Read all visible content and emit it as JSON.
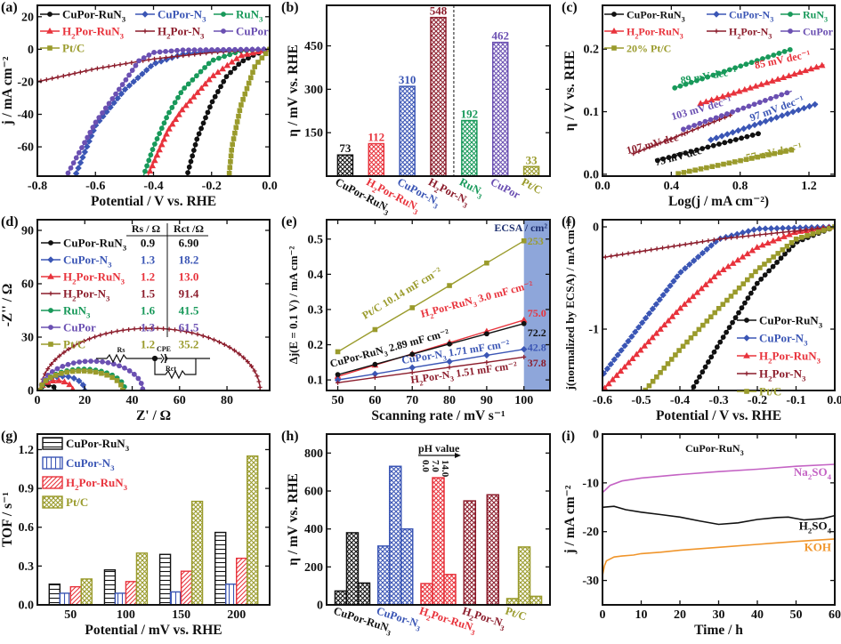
{
  "colors": {
    "black": "#111111",
    "blue": "#3b56b5",
    "green": "#18995a",
    "red": "#e8333c",
    "darkred": "#8c1d2c",
    "purple": "#6b50b2",
    "olive": "#9a9b2c",
    "pink": "#c463c4",
    "orange": "#f0952b",
    "ecsa_band": "#8ea6da"
  },
  "chart_data": [
    {
      "panel": "(a)",
      "type": "line",
      "xlabel": "Potential / V vs. RHE",
      "ylabel": "j / mA cm⁻²",
      "xlim": [
        -0.8,
        0.0
      ],
      "ylim": [
        -78,
        27
      ],
      "xticks": [
        -0.8,
        -0.6,
        -0.4,
        -0.2,
        0.0
      ],
      "xticklabels": [
        "-0.8",
        "-0.6",
        "-0.4",
        "-0.2",
        "0.0"
      ],
      "yticks": [
        20,
        0,
        -20,
        -40,
        -60
      ],
      "yticklabels": [
        "20",
        "0",
        "-20",
        "-40",
        "-60"
      ],
      "legend": "top",
      "series": [
        {
          "name": "CuPor-RuN3",
          "color": "black",
          "marker": "circle",
          "x": [
            0,
            -0.05,
            -0.1,
            -0.15,
            -0.2,
            -0.25,
            -0.285
          ],
          "y": [
            0,
            -3,
            -8,
            -17,
            -33,
            -55,
            -78
          ]
        },
        {
          "name": "CuPor-N3",
          "color": "blue",
          "marker": "diamond",
          "x": [
            0,
            -0.2,
            -0.3,
            -0.4,
            -0.5,
            -0.6,
            -0.67
          ],
          "y": [
            0,
            -1,
            -3,
            -9,
            -25,
            -47,
            -78
          ]
        },
        {
          "name": "RuN3",
          "color": "green",
          "marker": "circle",
          "x": [
            0,
            -0.1,
            -0.2,
            -0.3,
            -0.35,
            -0.4,
            -0.435
          ],
          "y": [
            0,
            -1,
            -7,
            -25,
            -40,
            -60,
            -78
          ]
        },
        {
          "name": "H2Por-RuN3",
          "color": "red",
          "marker": "triangle",
          "x": [
            0,
            -0.1,
            -0.2,
            -0.3,
            -0.35,
            -0.42
          ],
          "y": [
            0,
            -4,
            -17,
            -37,
            -50,
            -78
          ]
        },
        {
          "name": "H2Por-N3",
          "color": "darkred",
          "marker": "star",
          "x": [
            0,
            -0.2,
            -0.4,
            -0.6,
            -0.8
          ],
          "y": [
            0,
            -2,
            -6,
            -12,
            -20
          ]
        },
        {
          "name": "CuPor",
          "color": "purple",
          "marker": "circle",
          "x": [
            0,
            -0.3,
            -0.4,
            -0.45,
            -0.5,
            -0.6,
            -0.7
          ],
          "y": [
            0,
            -0.5,
            -2,
            -7,
            -20,
            -45,
            -78
          ]
        },
        {
          "name": "Pt/C",
          "color": "olive",
          "marker": "square",
          "x": [
            0,
            -0.05,
            -0.1,
            -0.13,
            -0.14
          ],
          "y": [
            0,
            -10,
            -35,
            -60,
            -78
          ]
        }
      ]
    },
    {
      "panel": "(b)",
      "type": "bar",
      "ylabel": "η / mV vs. RHE",
      "ylim": [
        0,
        590
      ],
      "yticks": [
        150,
        300,
        450
      ],
      "yticklabels": [
        "150",
        "300",
        "450"
      ],
      "categories": [
        "CuPor-RuN3",
        "H2Por-RuN3",
        "CuPor-N3",
        "H2Por-N3",
        "RuN3",
        "CuPor",
        "Pt/C"
      ],
      "values": [
        73,
        112,
        310,
        548,
        192,
        462,
        33
      ],
      "data_labels": [
        "73",
        "112",
        "310",
        "548",
        "192",
        "462",
        "33"
      ],
      "bar_colors": [
        "black",
        "red",
        "blue",
        "darkred",
        "green",
        "purple",
        "olive"
      ],
      "fill": "crosshatch",
      "divider": "dashed line between H2Por-N3 and RuN3"
    },
    {
      "panel": "(c)",
      "type": "line",
      "xlabel": "Log(j / mA cm⁻²)",
      "ylabel": "η / V vs. RHE",
      "xlim": [
        0.0,
        1.35
      ],
      "ylim": [
        -0.003,
        0.27
      ],
      "xticks": [
        0.0,
        0.4,
        0.8,
        1.2
      ],
      "xticklabels": [
        "0.0",
        "0.4",
        "0.8",
        "1.2"
      ],
      "yticks": [
        0.0,
        0.1,
        0.2
      ],
      "yticklabels": [
        "0.0",
        "0.1",
        "0.2"
      ],
      "legend": "top",
      "series": [
        {
          "name": "CuPor-RuN3",
          "color": "black",
          "marker": "circle",
          "x": [
            0.32,
            0.92
          ],
          "y": [
            0.022,
            0.066
          ],
          "slope_label": "73 mV dec⁻¹"
        },
        {
          "name": "CuPor-N3",
          "color": "blue",
          "marker": "diamond",
          "x": [
            0.63,
            1.25
          ],
          "y": [
            0.055,
            0.113
          ],
          "slope_label": "97 mV dec⁻¹"
        },
        {
          "name": "RuN3",
          "color": "green",
          "marker": "circle",
          "x": [
            0.42,
            1.1
          ],
          "y": [
            0.138,
            0.2
          ],
          "slope_label": "89 mV dec⁻¹"
        },
        {
          "name": "H2Por-RuN3",
          "color": "red",
          "marker": "triangle",
          "x": [
            0.57,
            1.29
          ],
          "y": [
            0.113,
            0.175
          ],
          "slope_label": "85 mV dec⁻¹"
        },
        {
          "name": "H2Por-N3",
          "color": "darkred",
          "marker": "star",
          "x": [
            0.18,
            0.75
          ],
          "y": [
            0.033,
            0.095
          ],
          "slope_label": "107 mV dec⁻¹"
        },
        {
          "name": "CuPor",
          "color": "purple",
          "marker": "circle",
          "x": [
            0.47,
            1.1
          ],
          "y": [
            0.072,
            0.133
          ],
          "slope_label": "103 mV dec⁻¹"
        },
        {
          "name": "20% Pt/C",
          "color": "olive",
          "marker": "square",
          "x": [
            0.44,
            1.12
          ],
          "y": [
            0.001,
            0.04
          ],
          "slope_label": "57 mV dec⁻¹"
        }
      ]
    },
    {
      "panel": "(d)",
      "type": "line",
      "xlabel": "Z' / Ω",
      "ylabel": "-Z'' / Ω",
      "xlim": [
        0,
        98
      ],
      "ylim": [
        0,
        96
      ],
      "xticks": [
        0,
        20,
        40,
        60,
        80
      ],
      "xticklabels": [
        "0",
        "20",
        "40",
        "60",
        "80"
      ],
      "yticks": [
        0,
        30,
        60,
        90
      ],
      "yticklabels": [
        "0",
        "30",
        "60",
        "90"
      ],
      "table_headers": [
        "Rs / Ω",
        "Rct /Ω"
      ],
      "circuit_labels": [
        "Rs",
        "CPE",
        "Rct"
      ],
      "series": [
        {
          "name": "CuPor-RuN3",
          "color": "black",
          "marker": "circle",
          "Rs": "0.9",
          "Rct": "6.90",
          "arc": [
            0.9,
            7.8,
            3
          ]
        },
        {
          "name": "CuPor-N3",
          "color": "blue",
          "marker": "diamond",
          "Rs": "1.3",
          "Rct": "18.2",
          "arc": [
            1.3,
            20,
            8
          ]
        },
        {
          "name": "H2Por-RuN3",
          "color": "red",
          "marker": "triangle",
          "Rs": "1.2",
          "Rct": "13.0",
          "arc": [
            1.2,
            15,
            5.5
          ]
        },
        {
          "name": "H2Por-N3",
          "color": "darkred",
          "marker": "star",
          "Rs": "1.5",
          "Rct": "91.4",
          "arc": [
            1.5,
            94,
            35
          ]
        },
        {
          "name": "RuN3",
          "color": "green",
          "marker": "circle",
          "Rs": "1.6",
          "Rct": "41.5",
          "arc": [
            1.6,
            37,
            12
          ]
        },
        {
          "name": "CuPor",
          "color": "purple",
          "marker": "circle",
          "Rs": "1.3",
          "Rct": "61.5",
          "arc": [
            1.3,
            44.5,
            16.5
          ]
        },
        {
          "name": "Pt/C",
          "color": "olive",
          "marker": "square",
          "Rs": "1.2",
          "Rct": "35.2",
          "arc": [
            1.2,
            36,
            11
          ]
        }
      ]
    },
    {
      "panel": "(e)",
      "type": "line",
      "xlabel": "Scanning rate / mV s⁻¹",
      "ylabel": "Δj(E = 0.1 V) / mA cm⁻²",
      "xlim": [
        47,
        107
      ],
      "ylim": [
        0.07,
        0.555
      ],
      "xticks": [
        50,
        60,
        70,
        80,
        90,
        100
      ],
      "xticklabels": [
        "50",
        "60",
        "70",
        "80",
        "90",
        "100"
      ],
      "yticks": [
        0.1,
        0.2,
        0.3,
        0.4,
        0.5
      ],
      "yticklabels": [
        "0.1",
        "0.2",
        "0.3",
        "0.4",
        "0.5"
      ],
      "ecsa_header": "ECSA / cm²",
      "series": [
        {
          "name": "Pt/C",
          "color": "olive",
          "marker": "square",
          "x": [
            50,
            60,
            70,
            80,
            90,
            100
          ],
          "y": [
            0.18,
            0.243,
            0.305,
            0.368,
            0.432,
            0.495
          ],
          "label": "Pt/C 10.14 mF cm⁻²",
          "ecsa": "253"
        },
        {
          "name": "H2Por-RuN3",
          "color": "red",
          "marker": "triangle",
          "x": [
            50,
            60,
            70,
            80,
            90,
            100
          ],
          "y": [
            0.11,
            0.142,
            0.174,
            0.206,
            0.238,
            0.27
          ],
          "label": "H2Por-RuN3 3.0 mF cm⁻²",
          "ecsa": "75.0"
        },
        {
          "name": "CuPor-RuN3",
          "color": "black",
          "marker": "circle",
          "x": [
            50,
            60,
            70,
            80,
            90,
            100
          ],
          "y": [
            0.115,
            0.144,
            0.173,
            0.202,
            0.231,
            0.26
          ],
          "label": "CuPor-RuN3 2.89 mF cm⁻²",
          "ecsa": "72.2"
        },
        {
          "name": "CuPor-N3",
          "color": "blue",
          "marker": "diamond",
          "x": [
            50,
            60,
            70,
            80,
            90,
            100
          ],
          "y": [
            0.1,
            0.117,
            0.135,
            0.152,
            0.17,
            0.187
          ],
          "label": "CuPor-N3 1.71 mF cm⁻²",
          "ecsa": "42.8"
        },
        {
          "name": "H2Por-N3",
          "color": "darkred",
          "marker": "star",
          "x": [
            50,
            60,
            70,
            80,
            90,
            100
          ],
          "y": [
            0.092,
            0.107,
            0.121,
            0.136,
            0.15,
            0.165
          ],
          "label": "H2Por-N3 1.51 mF cm⁻²",
          "ecsa": "37.8"
        }
      ]
    },
    {
      "panel": "(f)",
      "type": "line",
      "xlabel": "Potential / V vs. RHE",
      "ylabel": "j(normalized by ECSA) / mA cm⁻²",
      "xlim": [
        -0.6,
        0.0
      ],
      "ylim": [
        -1.6,
        0.07
      ],
      "xticks": [
        -0.6,
        -0.5,
        -0.4,
        -0.3,
        -0.2,
        -0.1,
        0.0
      ],
      "xticklabels": [
        "-0.6",
        "-0.5",
        "-0.4",
        "-0.3",
        "-0.2",
        "-0.1",
        "0.0"
      ],
      "yticks": [
        0,
        -1
      ],
      "yticklabels": [
        "0",
        "-1"
      ],
      "legend": "bottom-right",
      "series": [
        {
          "name": "CuPor-RuN3",
          "color": "black",
          "marker": "circle",
          "x": [
            0,
            -0.1,
            -0.2,
            -0.3,
            -0.37
          ],
          "y": [
            0,
            -0.15,
            -0.55,
            -1.15,
            -1.6
          ]
        },
        {
          "name": "CuPor-N3",
          "color": "blue",
          "marker": "diamond",
          "x": [
            0,
            -0.2,
            -0.3,
            -0.4,
            -0.5,
            -0.6
          ],
          "y": [
            0,
            -0.02,
            -0.12,
            -0.45,
            -0.95,
            -1.45
          ]
        },
        {
          "name": "H2Por-RuN3",
          "color": "red",
          "marker": "triangle",
          "x": [
            0,
            -0.1,
            -0.2,
            -0.3,
            -0.4,
            -0.5,
            -0.6
          ],
          "y": [
            0,
            -0.05,
            -0.2,
            -0.45,
            -0.8,
            -1.2,
            -1.6
          ]
        },
        {
          "name": "H2Por-N3",
          "color": "darkred",
          "marker": "star",
          "x": [
            0,
            -0.3,
            -0.6
          ],
          "y": [
            0,
            -0.12,
            -0.3
          ]
        },
        {
          "name": "Pt/C",
          "color": "olive",
          "marker": "square",
          "x": [
            0,
            -0.1,
            -0.2,
            -0.3,
            -0.4,
            -0.49
          ],
          "y": [
            0,
            -0.12,
            -0.42,
            -0.8,
            -1.2,
            -1.6
          ]
        }
      ]
    },
    {
      "panel": "(g)",
      "type": "bar",
      "xlabel": "Potential / mV vs. RHE",
      "ylabel": "TOF / s⁻¹",
      "ylim": [
        0,
        1.32
      ],
      "yticks": [
        0.0,
        0.3,
        0.6,
        0.9,
        1.2
      ],
      "yticklabels": [
        "0.0",
        "0.3",
        "0.6",
        "0.9",
        "1.2"
      ],
      "categories": [
        "50",
        "100",
        "150",
        "200"
      ],
      "legend": "top-left",
      "series": [
        {
          "name": "CuPor-RuN3",
          "color": "black",
          "fill": "hstripe",
          "values": [
            0.16,
            0.27,
            0.39,
            0.56
          ]
        },
        {
          "name": "CuPor-N3",
          "color": "blue",
          "fill": "vstripe",
          "values": [
            0.09,
            0.09,
            0.1,
            0.16
          ]
        },
        {
          "name": "H2Por-RuN3",
          "color": "red",
          "fill": "diag",
          "values": [
            0.14,
            0.18,
            0.26,
            0.36
          ]
        },
        {
          "name": "Pt/C",
          "color": "olive",
          "fill": "crosshatch",
          "values": [
            0.2,
            0.4,
            0.8,
            1.15
          ]
        }
      ]
    },
    {
      "panel": "(h)",
      "type": "bar",
      "ylabel": "η / mV vs. RHE",
      "ylim": [
        0,
        900
      ],
      "yticks": [
        0,
        200,
        400,
        600,
        800
      ],
      "yticklabels": [
        "0",
        "200",
        "400",
        "600",
        "800"
      ],
      "categories": [
        "CuPor-RuN3",
        "CuPor-N3",
        "H2Por-RuN3",
        "H2Por-N3",
        "Pt/C"
      ],
      "bar_colors": [
        "black",
        "blue",
        "red",
        "darkred",
        "olive"
      ],
      "ph_title": "pH value",
      "ph_values": [
        "0.0",
        "7.0",
        "14.0"
      ],
      "values": [
        [
          73,
          380,
          115
        ],
        [
          310,
          730,
          400
        ],
        [
          112,
          670,
          160
        ],
        [
          548,
          null,
          580
        ],
        [
          33,
          305,
          45
        ]
      ],
      "fill": "crosshatch"
    },
    {
      "panel": "(i)",
      "type": "line",
      "title": "CuPor-RuN3",
      "xlabel": "Time / h",
      "ylabel": "j / mA cm⁻²",
      "xlim": [
        0,
        60
      ],
      "ylim": [
        -35,
        0
      ],
      "xticks": [
        0,
        10,
        20,
        30,
        40,
        50,
        60
      ],
      "xticklabels": [
        "0",
        "10",
        "20",
        "30",
        "40",
        "50",
        "60"
      ],
      "yticks": [
        0,
        -10,
        -20,
        -30
      ],
      "yticklabels": [
        "0",
        "-10",
        "-20",
        "-30"
      ],
      "series": [
        {
          "name": "Na2SO4",
          "color": "pink",
          "x": [
            0,
            2,
            5,
            10,
            20,
            30,
            40,
            50,
            60
          ],
          "y": [
            -12,
            -10.5,
            -9.6,
            -9,
            -8.3,
            -7.7,
            -7.2,
            -6.6,
            -6.2
          ]
        },
        {
          "name": "H2SO4",
          "color": "black",
          "x": [
            0,
            3,
            6,
            10,
            15,
            20,
            25,
            30,
            35,
            40,
            45,
            48,
            52,
            57,
            60
          ],
          "y": [
            -15,
            -14.8,
            -15.5,
            -16,
            -16.5,
            -17,
            -17.8,
            -18.5,
            -18.2,
            -17.5,
            -17.1,
            -17,
            -17.6,
            -17.3,
            -16.7
          ]
        },
        {
          "name": "KOH",
          "color": "orange",
          "x": [
            0,
            0.5,
            1,
            3,
            5,
            8,
            10,
            15,
            20,
            30,
            40,
            45,
            50,
            60
          ],
          "y": [
            -29,
            -27,
            -26,
            -25.2,
            -25,
            -24.8,
            -24.5,
            -24.2,
            -23.8,
            -23.2,
            -22.6,
            -22.3,
            -22,
            -21.5
          ]
        }
      ]
    }
  ]
}
